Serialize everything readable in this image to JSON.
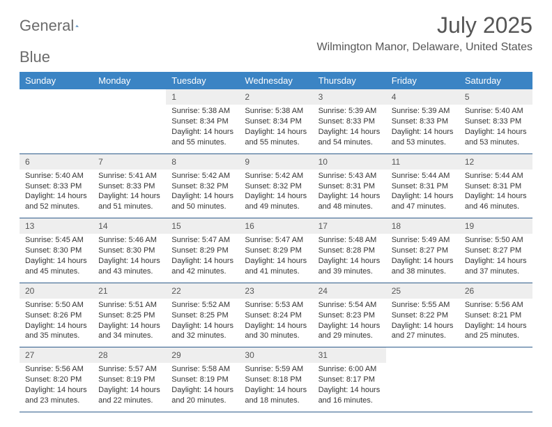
{
  "brand": {
    "name_part1": "General",
    "name_part2": "Blue",
    "accent_color": "#3b84c4"
  },
  "title": "July 2025",
  "location": "Wilmington Manor, Delaware, United States",
  "colors": {
    "header_bg": "#3b84c4",
    "header_text": "#ffffff",
    "daynum_bg": "#eeeeee",
    "row_border": "#2d5b8a",
    "body_text": "#333333"
  },
  "weekdays": [
    "Sunday",
    "Monday",
    "Tuesday",
    "Wednesday",
    "Thursday",
    "Friday",
    "Saturday"
  ],
  "weeks": [
    [
      {
        "empty": true
      },
      {
        "empty": true
      },
      {
        "day": "1",
        "sunrise": "Sunrise: 5:38 AM",
        "sunset": "Sunset: 8:34 PM",
        "daylight": "Daylight: 14 hours and 55 minutes."
      },
      {
        "day": "2",
        "sunrise": "Sunrise: 5:38 AM",
        "sunset": "Sunset: 8:34 PM",
        "daylight": "Daylight: 14 hours and 55 minutes."
      },
      {
        "day": "3",
        "sunrise": "Sunrise: 5:39 AM",
        "sunset": "Sunset: 8:33 PM",
        "daylight": "Daylight: 14 hours and 54 minutes."
      },
      {
        "day": "4",
        "sunrise": "Sunrise: 5:39 AM",
        "sunset": "Sunset: 8:33 PM",
        "daylight": "Daylight: 14 hours and 53 minutes."
      },
      {
        "day": "5",
        "sunrise": "Sunrise: 5:40 AM",
        "sunset": "Sunset: 8:33 PM",
        "daylight": "Daylight: 14 hours and 53 minutes."
      }
    ],
    [
      {
        "day": "6",
        "sunrise": "Sunrise: 5:40 AM",
        "sunset": "Sunset: 8:33 PM",
        "daylight": "Daylight: 14 hours and 52 minutes."
      },
      {
        "day": "7",
        "sunrise": "Sunrise: 5:41 AM",
        "sunset": "Sunset: 8:33 PM",
        "daylight": "Daylight: 14 hours and 51 minutes."
      },
      {
        "day": "8",
        "sunrise": "Sunrise: 5:42 AM",
        "sunset": "Sunset: 8:32 PM",
        "daylight": "Daylight: 14 hours and 50 minutes."
      },
      {
        "day": "9",
        "sunrise": "Sunrise: 5:42 AM",
        "sunset": "Sunset: 8:32 PM",
        "daylight": "Daylight: 14 hours and 49 minutes."
      },
      {
        "day": "10",
        "sunrise": "Sunrise: 5:43 AM",
        "sunset": "Sunset: 8:31 PM",
        "daylight": "Daylight: 14 hours and 48 minutes."
      },
      {
        "day": "11",
        "sunrise": "Sunrise: 5:44 AM",
        "sunset": "Sunset: 8:31 PM",
        "daylight": "Daylight: 14 hours and 47 minutes."
      },
      {
        "day": "12",
        "sunrise": "Sunrise: 5:44 AM",
        "sunset": "Sunset: 8:31 PM",
        "daylight": "Daylight: 14 hours and 46 minutes."
      }
    ],
    [
      {
        "day": "13",
        "sunrise": "Sunrise: 5:45 AM",
        "sunset": "Sunset: 8:30 PM",
        "daylight": "Daylight: 14 hours and 45 minutes."
      },
      {
        "day": "14",
        "sunrise": "Sunrise: 5:46 AM",
        "sunset": "Sunset: 8:30 PM",
        "daylight": "Daylight: 14 hours and 43 minutes."
      },
      {
        "day": "15",
        "sunrise": "Sunrise: 5:47 AM",
        "sunset": "Sunset: 8:29 PM",
        "daylight": "Daylight: 14 hours and 42 minutes."
      },
      {
        "day": "16",
        "sunrise": "Sunrise: 5:47 AM",
        "sunset": "Sunset: 8:29 PM",
        "daylight": "Daylight: 14 hours and 41 minutes."
      },
      {
        "day": "17",
        "sunrise": "Sunrise: 5:48 AM",
        "sunset": "Sunset: 8:28 PM",
        "daylight": "Daylight: 14 hours and 39 minutes."
      },
      {
        "day": "18",
        "sunrise": "Sunrise: 5:49 AM",
        "sunset": "Sunset: 8:27 PM",
        "daylight": "Daylight: 14 hours and 38 minutes."
      },
      {
        "day": "19",
        "sunrise": "Sunrise: 5:50 AM",
        "sunset": "Sunset: 8:27 PM",
        "daylight": "Daylight: 14 hours and 37 minutes."
      }
    ],
    [
      {
        "day": "20",
        "sunrise": "Sunrise: 5:50 AM",
        "sunset": "Sunset: 8:26 PM",
        "daylight": "Daylight: 14 hours and 35 minutes."
      },
      {
        "day": "21",
        "sunrise": "Sunrise: 5:51 AM",
        "sunset": "Sunset: 8:25 PM",
        "daylight": "Daylight: 14 hours and 34 minutes."
      },
      {
        "day": "22",
        "sunrise": "Sunrise: 5:52 AM",
        "sunset": "Sunset: 8:25 PM",
        "daylight": "Daylight: 14 hours and 32 minutes."
      },
      {
        "day": "23",
        "sunrise": "Sunrise: 5:53 AM",
        "sunset": "Sunset: 8:24 PM",
        "daylight": "Daylight: 14 hours and 30 minutes."
      },
      {
        "day": "24",
        "sunrise": "Sunrise: 5:54 AM",
        "sunset": "Sunset: 8:23 PM",
        "daylight": "Daylight: 14 hours and 29 minutes."
      },
      {
        "day": "25",
        "sunrise": "Sunrise: 5:55 AM",
        "sunset": "Sunset: 8:22 PM",
        "daylight": "Daylight: 14 hours and 27 minutes."
      },
      {
        "day": "26",
        "sunrise": "Sunrise: 5:56 AM",
        "sunset": "Sunset: 8:21 PM",
        "daylight": "Daylight: 14 hours and 25 minutes."
      }
    ],
    [
      {
        "day": "27",
        "sunrise": "Sunrise: 5:56 AM",
        "sunset": "Sunset: 8:20 PM",
        "daylight": "Daylight: 14 hours and 23 minutes."
      },
      {
        "day": "28",
        "sunrise": "Sunrise: 5:57 AM",
        "sunset": "Sunset: 8:19 PM",
        "daylight": "Daylight: 14 hours and 22 minutes."
      },
      {
        "day": "29",
        "sunrise": "Sunrise: 5:58 AM",
        "sunset": "Sunset: 8:19 PM",
        "daylight": "Daylight: 14 hours and 20 minutes."
      },
      {
        "day": "30",
        "sunrise": "Sunrise: 5:59 AM",
        "sunset": "Sunset: 8:18 PM",
        "daylight": "Daylight: 14 hours and 18 minutes."
      },
      {
        "day": "31",
        "sunrise": "Sunrise: 6:00 AM",
        "sunset": "Sunset: 8:17 PM",
        "daylight": "Daylight: 14 hours and 16 minutes."
      },
      {
        "empty": true
      },
      {
        "empty": true
      }
    ]
  ]
}
